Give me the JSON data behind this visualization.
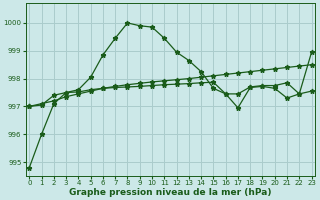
{
  "xlabel": "Graphe pression niveau de la mer (hPa)",
  "bg_color": "#cce8e8",
  "grid_color": "#aacccc",
  "line_color": "#1a5c1a",
  "ylim": [
    994.5,
    1000.7
  ],
  "xlim": [
    -0.3,
    23.3
  ],
  "yticks": [
    995,
    996,
    997,
    998,
    999,
    1000
  ],
  "xtick_labels": [
    "0",
    "1",
    "2",
    "3",
    "4",
    "5",
    "6",
    "7",
    "8",
    "9",
    "10",
    "11",
    "12",
    "13",
    "14",
    "15",
    "16",
    "17",
    "18",
    "19",
    "20",
    "21",
    "22",
    "23"
  ],
  "series_trend": [
    997.0,
    997.1,
    997.2,
    997.35,
    997.45,
    997.55,
    997.65,
    997.72,
    997.78,
    997.83,
    997.88,
    997.92,
    997.96,
    998.0,
    998.05,
    998.1,
    998.15,
    998.2,
    998.25,
    998.3,
    998.35,
    998.4,
    998.45,
    998.5
  ],
  "series_peak": [
    994.8,
    996.0,
    997.1,
    997.5,
    997.6,
    998.05,
    998.85,
    999.45,
    1000.0,
    999.9,
    999.85,
    999.45,
    998.95,
    998.65,
    998.25,
    997.65,
    997.45,
    997.45,
    997.7,
    997.75,
    997.75,
    997.85,
    997.45,
    998.95
  ],
  "series_flat": [
    997.0,
    997.05,
    997.4,
    997.5,
    997.52,
    997.6,
    997.65,
    997.68,
    997.7,
    997.72,
    997.75,
    997.78,
    997.8,
    997.82,
    997.85,
    997.87,
    997.45,
    996.95,
    997.68,
    997.72,
    997.65,
    997.3,
    997.45,
    997.55
  ],
  "ylabel_fontsize": 5.5,
  "xlabel_fontsize": 6.5,
  "tick_fontsize": 5.0,
  "marker": "*",
  "markersize": 3.5,
  "linewidth": 0.9
}
